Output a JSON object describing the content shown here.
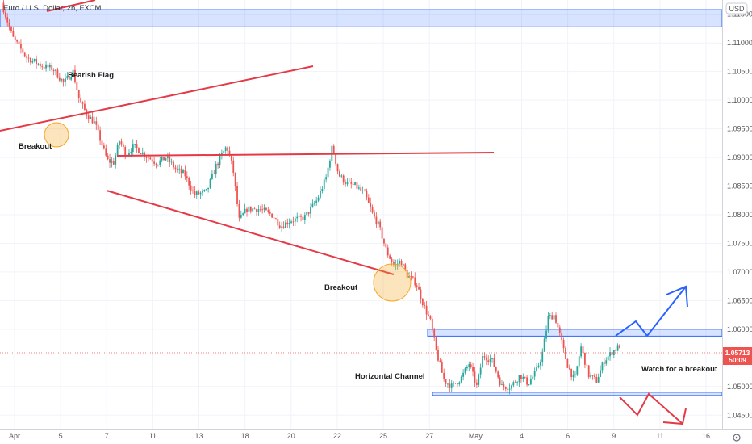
{
  "chart_data": {
    "type": "candlestick",
    "title": "Euro / U.S. Dollar, 2h, FXCM",
    "currency": "USD",
    "ylim": [
      1.0425,
      1.1175
    ],
    "y_ticks": [
      "1.11500",
      "1.11000",
      "1.10500",
      "1.10000",
      "1.09500",
      "1.09000",
      "1.08500",
      "1.08000",
      "1.07500",
      "1.07000",
      "1.06500",
      "1.06000",
      "1.05500",
      "1.05000",
      "1.04500"
    ],
    "x_ticks": [
      "Apr",
      "5",
      "7",
      "11",
      "13",
      "18",
      "20",
      "22",
      "25",
      "27",
      "May",
      "4",
      "6",
      "9",
      "11",
      "16"
    ],
    "last_price": "1.05713",
    "countdown": "50:09",
    "colors": {
      "up": "#26a69a",
      "down": "#ef5350",
      "trendline": "#e53946",
      "zone": "#2962ff",
      "projection_up": "#2962ff",
      "projection_down": "#e53946",
      "circle": "#f5a623"
    },
    "zones": [
      {
        "from": 1.1128,
        "to": 1.1158
      },
      {
        "from": 1.0588,
        "to": 1.06
      },
      {
        "from": 1.0486,
        "to": 1.049
      }
    ],
    "series": [
      {
        "name": "EUR/USD",
        "path": [
          [
            0,
            1.117
          ],
          [
            0.7,
            1.111
          ],
          [
            1.6,
            1.1075
          ],
          [
            2.6,
            1.106
          ],
          [
            3.3,
            1.1055
          ],
          [
            4,
            1.103
          ],
          [
            4.6,
            1.105
          ],
          [
            5.0,
            1.1
          ],
          [
            5.5,
            1.0975
          ],
          [
            6.0,
            1.096
          ],
          [
            6.8,
            1.0895
          ],
          [
            7.2,
            1.089
          ],
          [
            7.6,
            1.093
          ],
          [
            8.0,
            1.0905
          ],
          [
            8.5,
            1.092
          ],
          [
            9.2,
            1.0905
          ],
          [
            10.0,
            1.089
          ],
          [
            10.6,
            1.09
          ],
          [
            11.2,
            1.088
          ],
          [
            11.8,
            1.087
          ],
          [
            12.4,
            1.0835
          ],
          [
            13.2,
            1.084
          ],
          [
            13.8,
            1.0885
          ],
          [
            14.5,
            1.092
          ],
          [
            14.9,
            1.088
          ],
          [
            15.3,
            1.079
          ],
          [
            15.8,
            1.081
          ],
          [
            16.6,
            1.081
          ],
          [
            17.4,
            1.08
          ],
          [
            18.0,
            1.078
          ],
          [
            18.6,
            1.079
          ],
          [
            19.5,
            1.0795
          ],
          [
            20.3,
            1.0825
          ],
          [
            20.9,
            1.0865
          ],
          [
            21.3,
            1.092
          ],
          [
            21.7,
            1.087
          ],
          [
            22.2,
            1.0855
          ],
          [
            22.8,
            1.085
          ],
          [
            23.4,
            1.0835
          ],
          [
            23.9,
            1.08
          ],
          [
            24.3,
            1.078
          ],
          [
            24.8,
            1.0735
          ],
          [
            25.3,
            1.071
          ],
          [
            25.7,
            1.072
          ],
          [
            26.1,
            1.0695
          ],
          [
            26.7,
            1.068
          ],
          [
            27.2,
            1.064
          ],
          [
            27.6,
            1.0615
          ],
          [
            28.0,
            1.056
          ],
          [
            28.5,
            1.051
          ],
          [
            29.0,
            1.05
          ],
          [
            29.6,
            1.0515
          ],
          [
            30.1,
            1.054
          ],
          [
            30.6,
            1.05
          ],
          [
            31.0,
            1.0555
          ],
          [
            31.6,
            1.0545
          ],
          [
            32.2,
            1.05
          ],
          [
            32.8,
            1.05
          ],
          [
            33.4,
            1.052
          ],
          [
            33.9,
            1.0505
          ],
          [
            34.4,
            1.0525
          ],
          [
            34.8,
            1.0555
          ],
          [
            35.2,
            1.062
          ],
          [
            35.6,
            1.0625
          ],
          [
            36.0,
            1.0585
          ],
          [
            36.4,
            1.054
          ],
          [
            36.9,
            1.051
          ],
          [
            37.3,
            1.057
          ],
          [
            37.8,
            1.052
          ],
          [
            38.3,
            1.051
          ],
          [
            38.8,
            1.0545
          ],
          [
            39.3,
            1.056
          ],
          [
            39.8,
            1.0571
          ]
        ]
      }
    ],
    "annotations": [
      {
        "text": "Bearish Flag"
      },
      {
        "text": "Breakout"
      },
      {
        "text": "Breakout"
      },
      {
        "text": "Horizontal Channel"
      },
      {
        "text": "Watch for a breakout"
      }
    ]
  }
}
